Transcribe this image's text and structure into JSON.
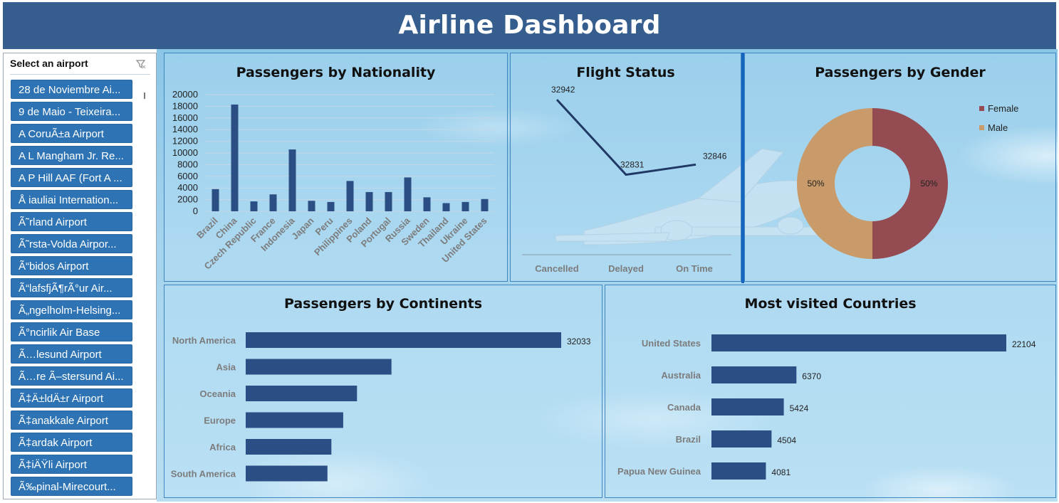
{
  "header": {
    "title": "Airline Dashboard"
  },
  "slicer": {
    "title": "Select an airport",
    "clear_icon": "clear-filter-icon",
    "items": [
      "28 de Noviembre Ai...",
      "9 de Maio - Teixeira...",
      "A CoruÃ±a Airport",
      "A L Mangham Jr. Re...",
      "A P Hill AAF (Fort A ...",
      "Å iauliai Internation...",
      "Ã˜rland Airport",
      "Ã˜rsta-Volda Airpor...",
      "Ã“bidos Airport",
      "Ã“lafsfjÃ¶rÃ°ur Air...",
      "Ã„ngelholm-Helsing...",
      "Ã°ncirlik Air Base",
      "Ã…lesund Airport",
      "Ã…re Ã–stersund Ai...",
      "Ã‡Ä±ldÄ±r Airport",
      "Ã‡anakkale Airport",
      "Ã‡ardak Airport",
      "Ã‡iÄŸli Airport",
      "Ã‰pinal-Mirecourt..."
    ]
  },
  "panels": {
    "nationality": {
      "title": "Passengers by Nationality"
    },
    "status": {
      "title": "Flight Status"
    },
    "gender": {
      "title": "Passengers by Gender"
    },
    "continents": {
      "title": "Passengers by Continents"
    },
    "countries": {
      "title": "Most visited Countries"
    }
  },
  "colors": {
    "header": "#355e8f",
    "bar": "#2b4f84",
    "slicer_item": "#2e74b5",
    "female": "#944c52",
    "male": "#c99a6a",
    "line": "#1f3864"
  },
  "chart_data": [
    {
      "type": "bar",
      "title": "Passengers by Nationality",
      "categories": [
        "Brazil",
        "China",
        "Czech Republic",
        "France",
        "Indonesia",
        "Japan",
        "Peru",
        "Philippines",
        "Poland",
        "Portugal",
        "Russia",
        "Sweden",
        "Thailand",
        "Ukraine",
        "United States"
      ],
      "values": [
        3800,
        18300,
        1700,
        2900,
        10600,
        1800,
        1600,
        5200,
        3300,
        3300,
        5800,
        2400,
        1400,
        1600,
        2100
      ],
      "ylim": [
        0,
        20000
      ],
      "yticks": [
        0,
        2000,
        4000,
        6000,
        8000,
        10000,
        12000,
        14000,
        16000,
        18000,
        20000
      ],
      "grid": true
    },
    {
      "type": "line",
      "title": "Flight Status",
      "categories": [
        "Cancelled",
        "Delayed",
        "On Time"
      ],
      "values": [
        32942,
        32831,
        32846
      ],
      "data_labels": [
        "32942",
        "32831",
        "32846"
      ]
    },
    {
      "type": "pie",
      "title": "Passengers by Gender",
      "donut": true,
      "categories": [
        "Female",
        "Male"
      ],
      "values": [
        50,
        50
      ],
      "data_labels": [
        "50%",
        "50%"
      ],
      "legend": "top-right"
    },
    {
      "type": "bar",
      "orientation": "horizontal",
      "title": "Passengers by Continents",
      "categories": [
        "North America",
        "Asia",
        "Oceania",
        "Europe",
        "Africa",
        "South America"
      ],
      "values": [
        32033,
        14800,
        11300,
        9900,
        8700,
        8300
      ],
      "data_labels": [
        "32033",
        "",
        "",
        "",
        "",
        ""
      ]
    },
    {
      "type": "bar",
      "orientation": "horizontal",
      "title": "Most visited Countries",
      "categories": [
        "United States",
        "Australia",
        "Canada",
        "Brazil",
        "Papua New Guinea"
      ],
      "values": [
        22104,
        6370,
        5424,
        4504,
        4081
      ],
      "data_labels": [
        "22104",
        "6370",
        "5424",
        "4504",
        "4081"
      ]
    }
  ]
}
